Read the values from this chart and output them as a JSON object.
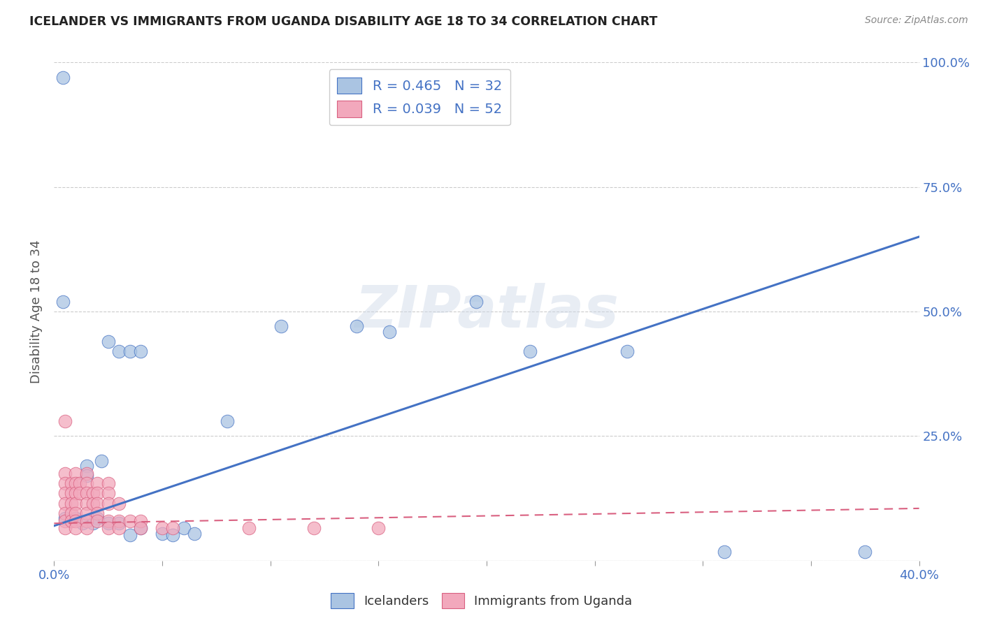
{
  "title": "ICELANDER VS IMMIGRANTS FROM UGANDA DISABILITY AGE 18 TO 34 CORRELATION CHART",
  "source": "Source: ZipAtlas.com",
  "ylabel": "Disability Age 18 to 34",
  "xlim": [
    0.0,
    0.4
  ],
  "ylim": [
    0.0,
    1.0
  ],
  "ytick_values": [
    0.0,
    0.25,
    0.5,
    0.75,
    1.0
  ],
  "ytick_labels": [
    "",
    "25.0%",
    "50.0%",
    "75.0%",
    "100.0%"
  ],
  "xtick_values": [
    0.0,
    0.05,
    0.1,
    0.15,
    0.2,
    0.25,
    0.3,
    0.35,
    0.4
  ],
  "xtick_labels": [
    "0.0%",
    "",
    "",
    "",
    "",
    "",
    "",
    "",
    "40.0%"
  ],
  "legend_icelanders": "Icelanders",
  "legend_uganda": "Immigrants from Uganda",
  "R_icelanders": 0.465,
  "N_icelanders": 32,
  "R_uganda": 0.039,
  "N_uganda": 52,
  "blue_color": "#aac4e2",
  "pink_color": "#f2a8bc",
  "blue_line_color": "#4472c4",
  "pink_line_color": "#d96080",
  "blue_line": {
    "x0": 0.0,
    "y0": 0.07,
    "x1": 0.4,
    "y1": 0.65
  },
  "pink_line": {
    "x0": 0.0,
    "y0": 0.075,
    "x1": 0.4,
    "y1": 0.105
  },
  "blue_scatter": [
    [
      0.004,
      0.97
    ],
    [
      0.14,
      0.97
    ],
    [
      0.004,
      0.52
    ],
    [
      0.195,
      0.52
    ],
    [
      0.025,
      0.44
    ],
    [
      0.03,
      0.42
    ],
    [
      0.105,
      0.47
    ],
    [
      0.14,
      0.47
    ],
    [
      0.155,
      0.46
    ],
    [
      0.035,
      0.42
    ],
    [
      0.04,
      0.42
    ],
    [
      0.22,
      0.42
    ],
    [
      0.265,
      0.42
    ],
    [
      0.08,
      0.28
    ],
    [
      0.022,
      0.2
    ],
    [
      0.015,
      0.19
    ],
    [
      0.015,
      0.17
    ],
    [
      0.02,
      0.085
    ],
    [
      0.005,
      0.085
    ],
    [
      0.01,
      0.085
    ],
    [
      0.013,
      0.075
    ],
    [
      0.018,
      0.075
    ],
    [
      0.025,
      0.075
    ],
    [
      0.03,
      0.075
    ],
    [
      0.04,
      0.065
    ],
    [
      0.05,
      0.055
    ],
    [
      0.06,
      0.065
    ],
    [
      0.065,
      0.055
    ],
    [
      0.035,
      0.052
    ],
    [
      0.055,
      0.052
    ],
    [
      0.31,
      0.018
    ],
    [
      0.375,
      0.018
    ]
  ],
  "pink_scatter": [
    [
      0.005,
      0.28
    ],
    [
      0.005,
      0.175
    ],
    [
      0.005,
      0.155
    ],
    [
      0.005,
      0.135
    ],
    [
      0.005,
      0.115
    ],
    [
      0.005,
      0.095
    ],
    [
      0.005,
      0.08
    ],
    [
      0.005,
      0.065
    ],
    [
      0.008,
      0.155
    ],
    [
      0.008,
      0.135
    ],
    [
      0.008,
      0.115
    ],
    [
      0.008,
      0.095
    ],
    [
      0.008,
      0.08
    ],
    [
      0.01,
      0.175
    ],
    [
      0.01,
      0.155
    ],
    [
      0.01,
      0.135
    ],
    [
      0.01,
      0.115
    ],
    [
      0.01,
      0.095
    ],
    [
      0.01,
      0.08
    ],
    [
      0.01,
      0.065
    ],
    [
      0.012,
      0.155
    ],
    [
      0.012,
      0.135
    ],
    [
      0.015,
      0.175
    ],
    [
      0.015,
      0.155
    ],
    [
      0.015,
      0.135
    ],
    [
      0.015,
      0.115
    ],
    [
      0.015,
      0.095
    ],
    [
      0.015,
      0.08
    ],
    [
      0.015,
      0.065
    ],
    [
      0.018,
      0.135
    ],
    [
      0.018,
      0.115
    ],
    [
      0.02,
      0.155
    ],
    [
      0.02,
      0.135
    ],
    [
      0.02,
      0.115
    ],
    [
      0.02,
      0.095
    ],
    [
      0.02,
      0.08
    ],
    [
      0.025,
      0.155
    ],
    [
      0.025,
      0.135
    ],
    [
      0.025,
      0.115
    ],
    [
      0.025,
      0.08
    ],
    [
      0.025,
      0.065
    ],
    [
      0.03,
      0.115
    ],
    [
      0.03,
      0.08
    ],
    [
      0.03,
      0.065
    ],
    [
      0.035,
      0.08
    ],
    [
      0.04,
      0.08
    ],
    [
      0.04,
      0.065
    ],
    [
      0.05,
      0.065
    ],
    [
      0.055,
      0.065
    ],
    [
      0.09,
      0.065
    ],
    [
      0.12,
      0.065
    ],
    [
      0.15,
      0.065
    ]
  ],
  "watermark": "ZIPatlas",
  "background_color": "#ffffff",
  "grid_color": "#cccccc"
}
